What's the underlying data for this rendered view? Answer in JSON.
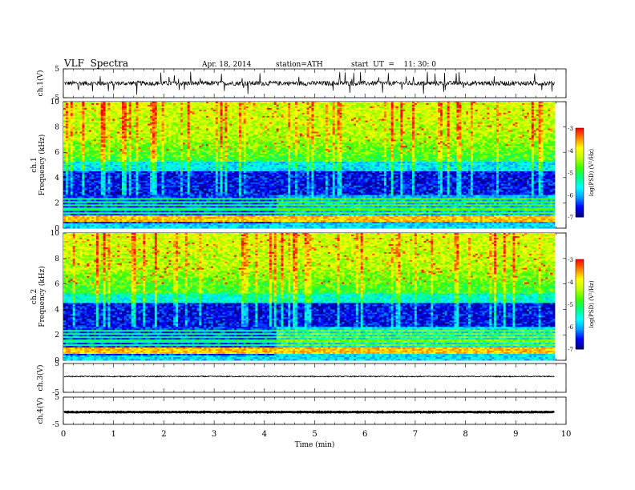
{
  "header": {
    "title": "VLF  Spectra",
    "date": "Apr. 18, 2014",
    "station": "station=ATH",
    "start": "start  UT  =    11: 30: 0"
  },
  "chart_data": [
    {
      "type": "line",
      "name": "ch1-waveform",
      "ylabel": "ch.1(V)",
      "ylim": [
        -5,
        5
      ],
      "yticks": [
        "5",
        "-5"
      ],
      "baseline": 0,
      "xlim": [
        0,
        10
      ]
    },
    {
      "type": "heatmap",
      "name": "ch1-spectrogram",
      "ylabel": "ch.1\nFrequency  (kHz)",
      "ylabel_lines": [
        "ch.1",
        "Frequency  (kHz)"
      ],
      "ylim": [
        0,
        10
      ],
      "yticks": [
        "0",
        "2",
        "4",
        "6",
        "8",
        "10"
      ],
      "xlim": [
        0,
        9.8
      ],
      "colorbar": {
        "label": "log(PSD) (V²/Hz)",
        "range": [
          -7,
          -3
        ],
        "ticks": [
          "-3",
          "-4",
          "-5",
          "-6",
          "-7"
        ]
      }
    },
    {
      "type": "heatmap",
      "name": "ch2-spectrogram",
      "ylabel": "ch.2\nFrequency  (kHz)",
      "ylabel_lines": [
        "ch.2",
        "Frequency  (kHz)"
      ],
      "ylim": [
        0,
        10
      ],
      "yticks": [
        "0",
        "2",
        "4",
        "6",
        "8",
        "10"
      ],
      "xlim": [
        0,
        9.8
      ],
      "colorbar": {
        "label": "log(PSD) (V²/Hz)",
        "range": [
          -7,
          -3
        ],
        "ticks": [
          "-3",
          "-4",
          "-5",
          "-6",
          "-7"
        ]
      }
    },
    {
      "type": "line",
      "name": "ch3-waveform",
      "ylabel": "ch.3(V)",
      "ylim": [
        -5,
        5
      ],
      "yticks": [
        "5",
        "-5"
      ],
      "baseline": 0.5
    },
    {
      "type": "line",
      "name": "ch4-waveform",
      "ylabel": "ch.4(V)",
      "ylim": [
        -5,
        5
      ],
      "yticks": [
        "5",
        "-5"
      ],
      "baseline": -0.5
    }
  ],
  "xaxis": {
    "label": "Time  (min)",
    "ticks": [
      "0",
      "1",
      "2",
      "3",
      "4",
      "5",
      "6",
      "7",
      "8",
      "9",
      "10"
    ],
    "range": [
      0,
      10
    ]
  },
  "colors": {
    "colormap": [
      "#000080",
      "#0000ff",
      "#00a0ff",
      "#00ffff",
      "#00ff80",
      "#40ff00",
      "#c0ff00",
      "#ffff00",
      "#ff8000",
      "#ff0000",
      "#ffffff"
    ]
  }
}
